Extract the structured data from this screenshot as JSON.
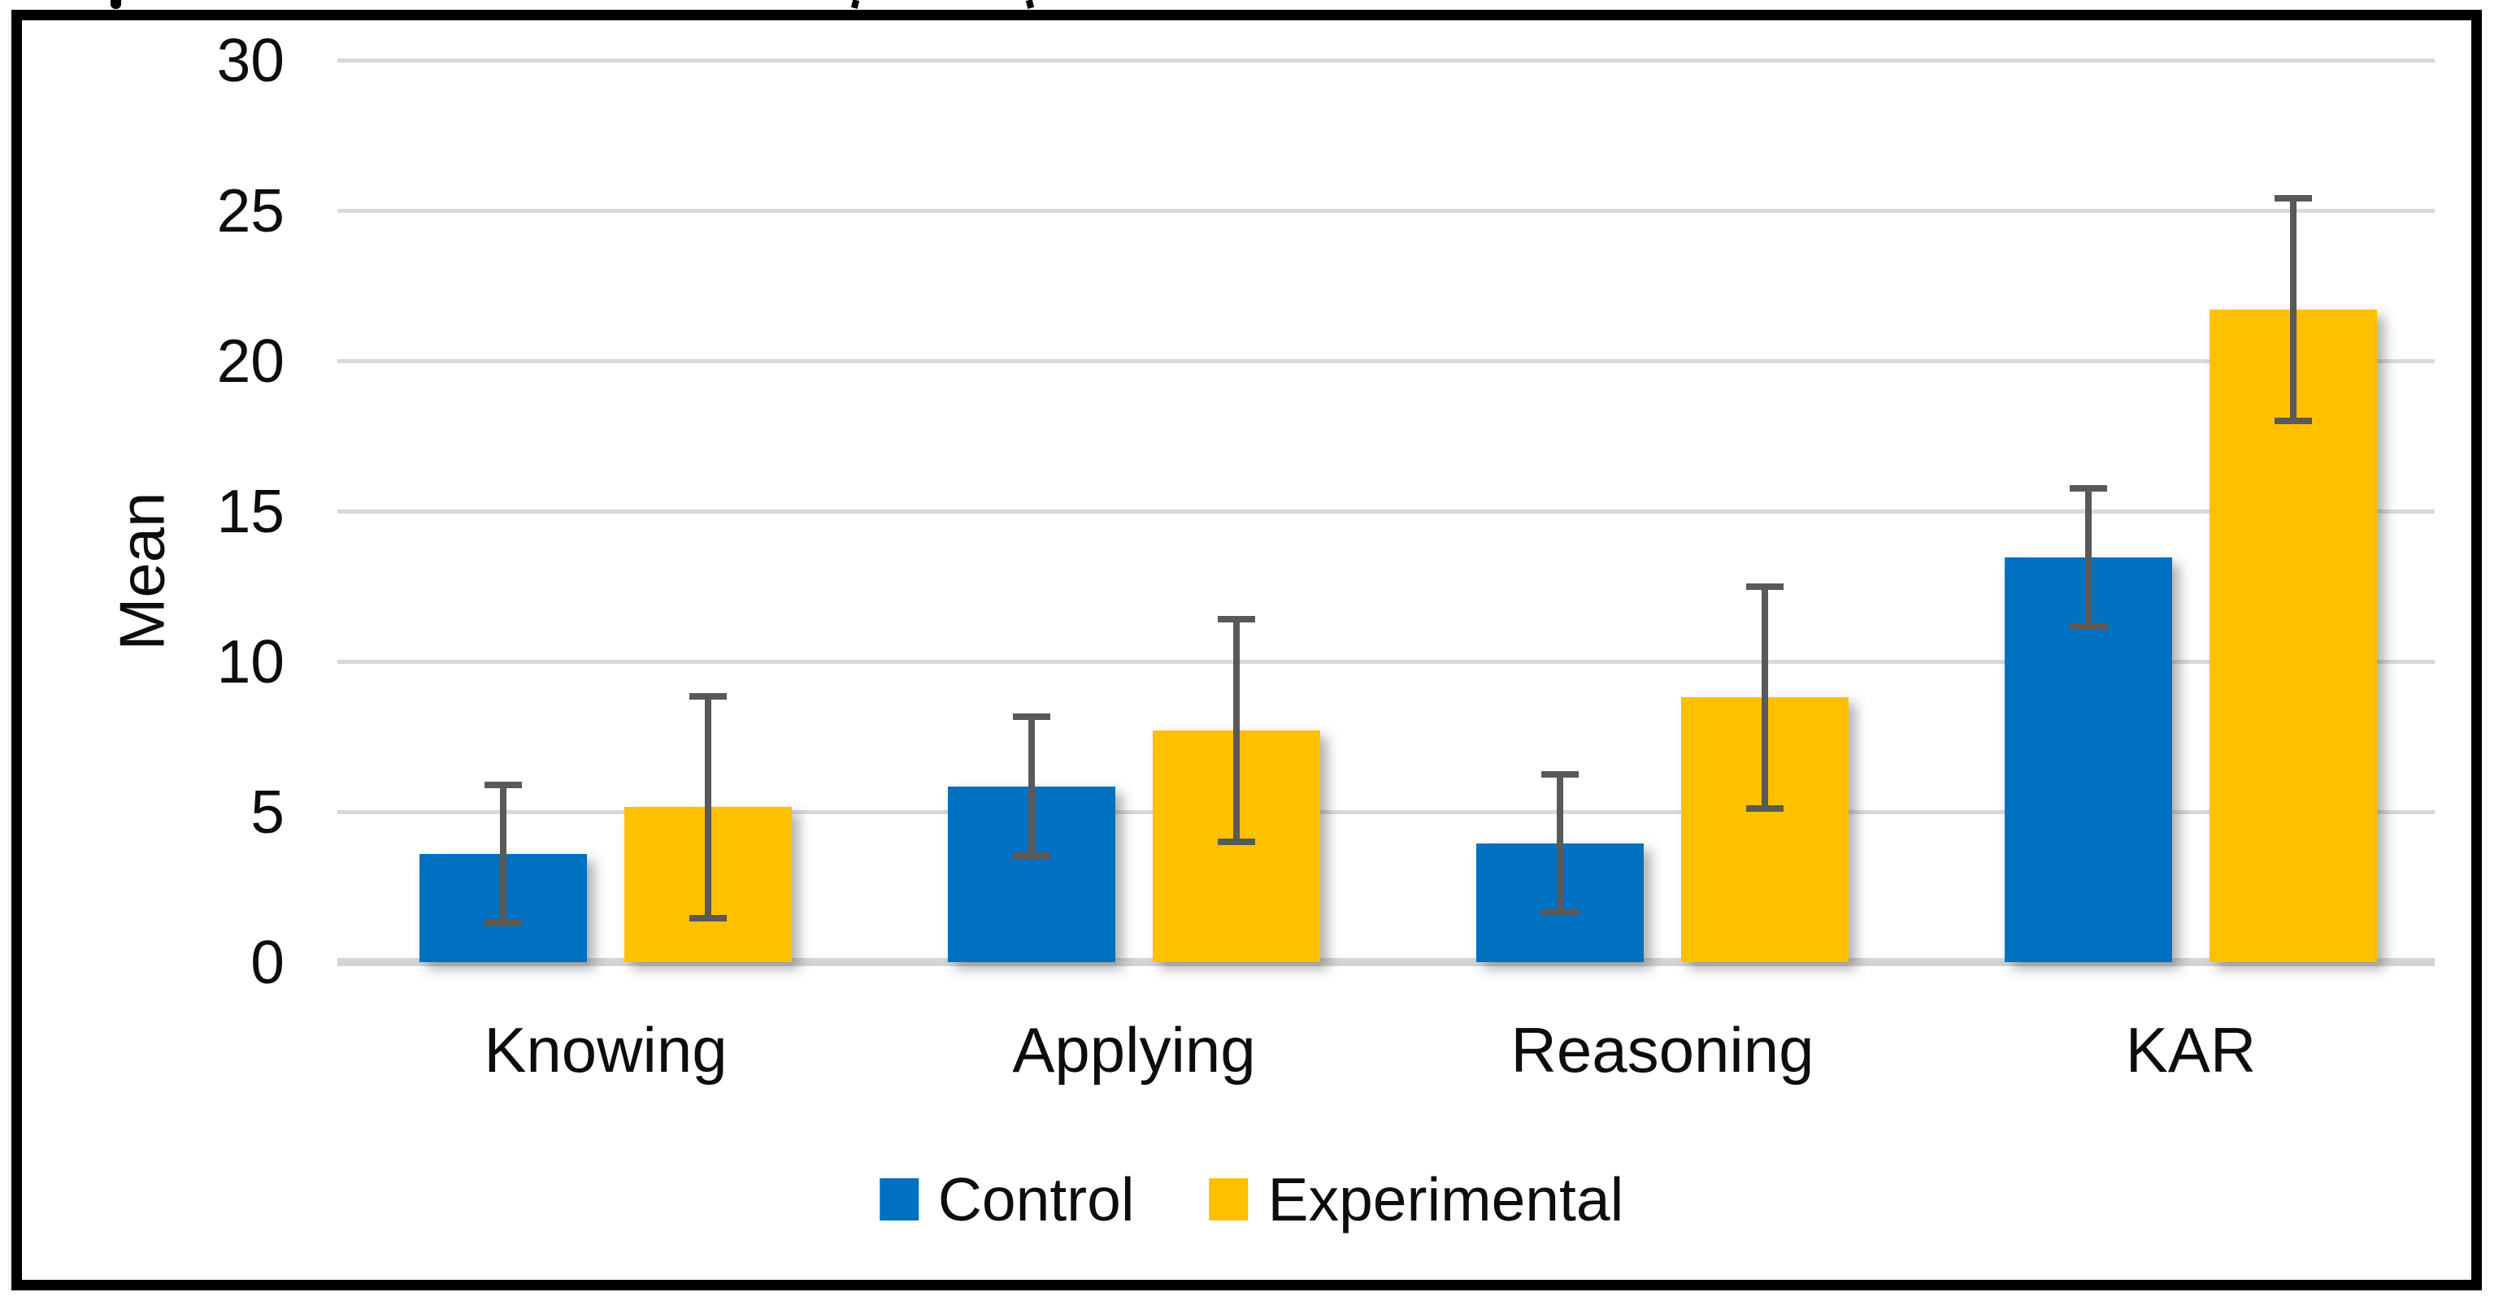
{
  "artifacts": {
    "top_cropped_caption": "partial glyph fragments of a cut-off caption line visible above the chart border"
  },
  "chart_data": {
    "type": "bar",
    "title": "",
    "xlabel": "",
    "ylabel": "Mean",
    "categories": [
      "Knowing",
      "Applying",
      "Reasoning",
      "KAR"
    ],
    "series": [
      {
        "name": "Control",
        "color": "#0070C0",
        "values": [
          3.6,
          5.85,
          3.95,
          13.45
        ],
        "errors": [
          2.3,
          2.3,
          2.3,
          2.3
        ]
      },
      {
        "name": "Experimental",
        "color": "#FFC000",
        "values": [
          5.15,
          7.7,
          8.8,
          21.7
        ],
        "errors": [
          3.7,
          3.7,
          3.7,
          3.7
        ]
      }
    ],
    "ylim": [
      0,
      30
    ],
    "yticks": [
      0,
      5,
      10,
      15,
      20,
      25,
      30
    ],
    "grid": "horizontal",
    "gridline_color": "#D9D9D9",
    "error_bar_color": "#595959",
    "plot_border_color": "#000000",
    "legend_position": "bottom"
  }
}
